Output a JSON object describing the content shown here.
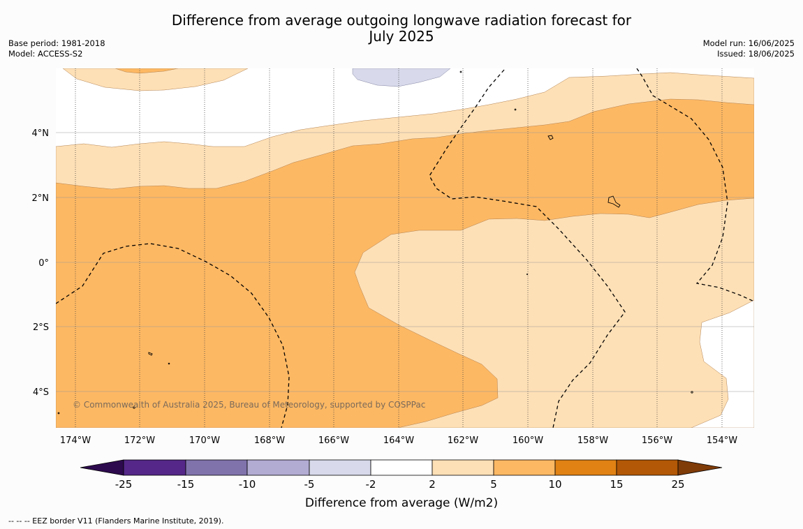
{
  "title_line1": "Difference from average outgoing longwave radiation forecast for",
  "title_line2": "July 2025",
  "base_period": "Base period: 1981-2018",
  "model": "Model: ACCESS-S2",
  "model_run": "Model run: 16/06/2025",
  "issued": "Issued: 18/06/2025",
  "copyright": "© Commonwealth of Australia 2025, Bureau of Meteorology, supported by COSPPac",
  "footer_note": "--  --  -- EEZ border V11 (Flanders Marine Institute, 2019).",
  "lat_ticks": [
    "4°N",
    "2°N",
    "0°",
    "2°S",
    "4°S"
  ],
  "lon_ticks": [
    "174°W",
    "172°W",
    "170°W",
    "168°W",
    "166°W",
    "164°W",
    "162°W",
    "160°W",
    "158°W",
    "156°W",
    "154°W"
  ],
  "colorbar": {
    "label": "Difference from average (W/m2)",
    "ticks": [
      "-25",
      "-15",
      "-10",
      "-5",
      "-2",
      "2",
      "5",
      "10",
      "15",
      "25"
    ],
    "colors": [
      "#2d0a4e",
      "#542788",
      "#8073ac",
      "#b2abd2",
      "#d8daeb",
      "#ffffff",
      "#fee0b6",
      "#fdb863",
      "#e08214",
      "#b35806",
      "#7f3b08"
    ]
  },
  "legend_colors": {
    "light_orange": "#fee0b6",
    "orange": "#fdb863",
    "light_purple": "#d8daeb",
    "eez_border": "#000000"
  }
}
